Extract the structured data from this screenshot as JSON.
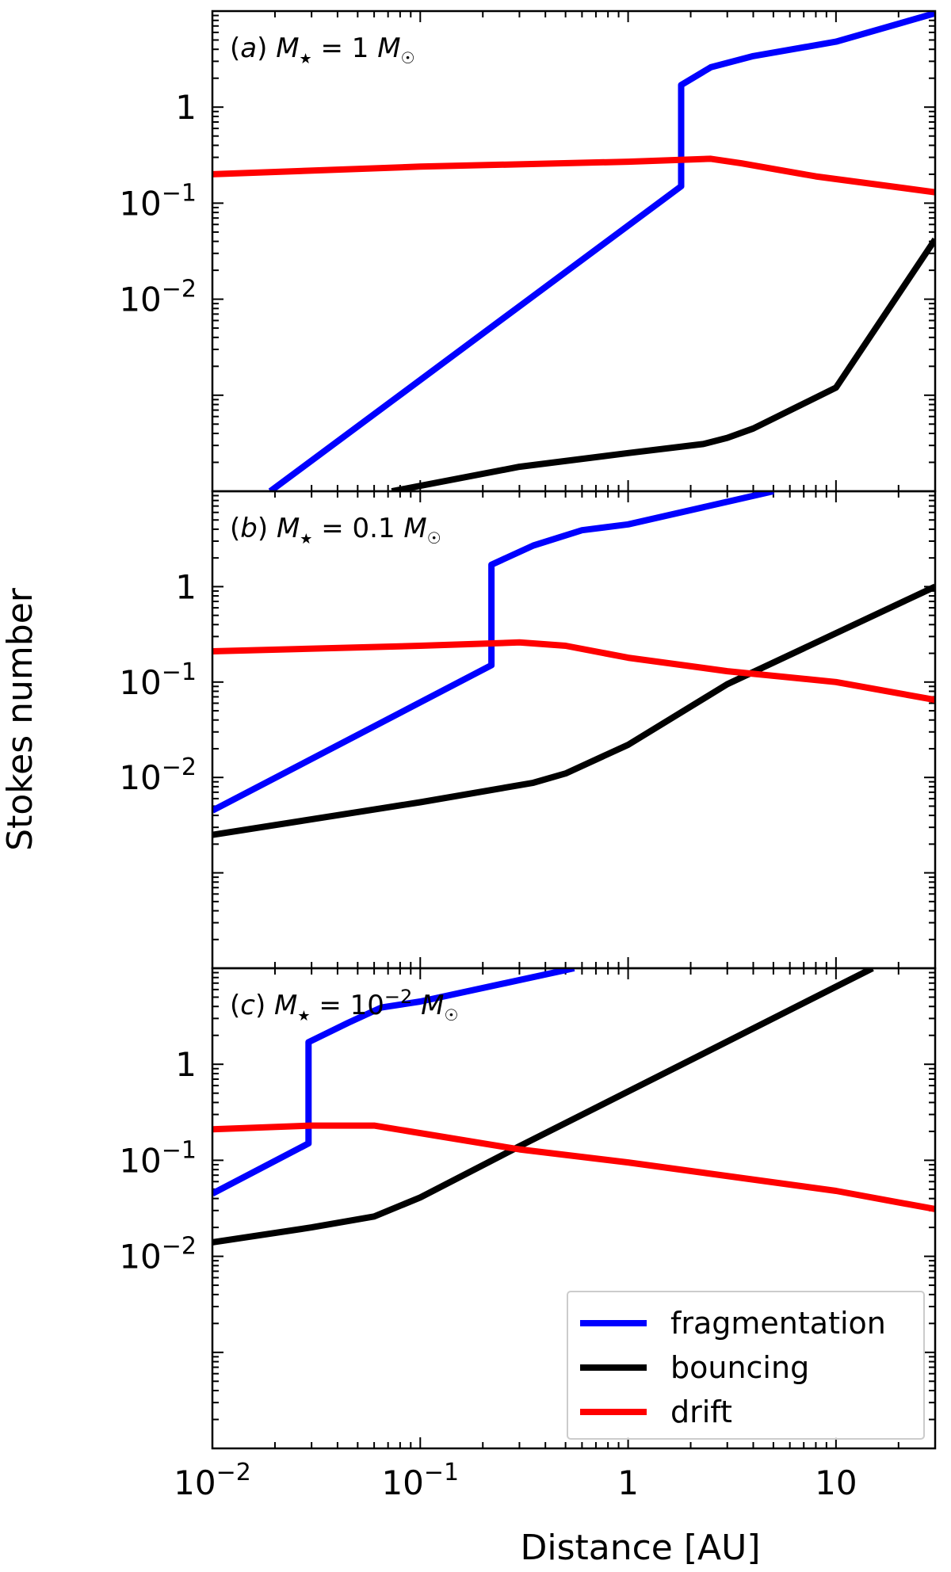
{
  "chart_data": {
    "type": "line",
    "xlabel": "Distance [AU]",
    "ylabel": "Stokes number",
    "xscale": "log",
    "yscale": "log",
    "xlim": [
      0.01,
      30
    ],
    "ylim": [
      0.0001,
      10
    ],
    "x_tick_labels": [
      {
        "value": 0.01,
        "base": "10",
        "exp": "−2"
      },
      {
        "value": 0.1,
        "base": "10",
        "exp": "−1"
      },
      {
        "value": 1,
        "base": "1",
        "exp": ""
      },
      {
        "value": 10,
        "base": "10",
        "exp": ""
      }
    ],
    "y_tick_labels": [
      {
        "value": 1,
        "base": "1",
        "exp": ""
      },
      {
        "value": 0.1,
        "base": "10",
        "exp": "−1"
      },
      {
        "value": 0.01,
        "base": "10",
        "exp": "−2"
      }
    ],
    "legend": {
      "location": "lower-right",
      "panel": 2,
      "entries": [
        {
          "label": "fragmentation",
          "color": "#0000ff"
        },
        {
          "label": "bouncing",
          "color": "#000000"
        },
        {
          "label": "drift",
          "color": "#ff0000"
        }
      ]
    },
    "panels": [
      {
        "label_letter": "a",
        "label_value": "1",
        "label_exp": "",
        "series": [
          {
            "name": "fragmentation",
            "color": "#0000ff",
            "points": [
              [
                0.019,
                0.0001
              ],
              [
                1.8,
                0.15
              ],
              [
                1.8,
                1.7
              ],
              [
                2.5,
                2.6
              ],
              [
                4,
                3.4
              ],
              [
                10,
                4.8
              ],
              [
                30,
                9.5
              ]
            ]
          },
          {
            "name": "bouncing",
            "color": "#000000",
            "points": [
              [
                0.073,
                0.0001
              ],
              [
                0.3,
                0.00018
              ],
              [
                1,
                0.00025
              ],
              [
                2.3,
                0.00031
              ],
              [
                3,
                0.00036
              ],
              [
                4,
                0.00045
              ],
              [
                10,
                0.0012
              ],
              [
                30,
                0.042
              ]
            ]
          },
          {
            "name": "drift",
            "color": "#ff0000",
            "points": [
              [
                0.01,
                0.2
              ],
              [
                0.1,
                0.24
              ],
              [
                1,
                0.27
              ],
              [
                2.5,
                0.29
              ],
              [
                3.5,
                0.26
              ],
              [
                8,
                0.19
              ],
              [
                30,
                0.13
              ]
            ]
          }
        ]
      },
      {
        "label_letter": "b",
        "label_value": "0.1",
        "label_exp": "",
        "series": [
          {
            "name": "fragmentation",
            "color": "#0000ff",
            "points": [
              [
                0.01,
                0.0045
              ],
              [
                0.22,
                0.15
              ],
              [
                0.22,
                1.7
              ],
              [
                0.35,
                2.7
              ],
              [
                0.6,
                3.9
              ],
              [
                1,
                4.5
              ],
              [
                5,
                10
              ]
            ]
          },
          {
            "name": "bouncing",
            "color": "#000000",
            "points": [
              [
                0.01,
                0.0025
              ],
              [
                0.1,
                0.0055
              ],
              [
                0.35,
                0.0088
              ],
              [
                0.5,
                0.011
              ],
              [
                1,
                0.022
              ],
              [
                3,
                0.095
              ],
              [
                30,
                1
              ]
            ]
          },
          {
            "name": "drift",
            "color": "#ff0000",
            "points": [
              [
                0.01,
                0.21
              ],
              [
                0.1,
                0.24
              ],
              [
                0.3,
                0.26
              ],
              [
                0.5,
                0.24
              ],
              [
                1,
                0.18
              ],
              [
                3,
                0.13
              ],
              [
                10,
                0.1
              ],
              [
                30,
                0.065
              ]
            ]
          }
        ]
      },
      {
        "label_letter": "c",
        "label_value": "10",
        "label_exp": "−2",
        "series": [
          {
            "name": "fragmentation",
            "color": "#0000ff",
            "points": [
              [
                0.01,
                0.045
              ],
              [
                0.029,
                0.15
              ],
              [
                0.029,
                1.7
              ],
              [
                0.045,
                2.7
              ],
              [
                0.065,
                3.9
              ],
              [
                0.1,
                4.5
              ],
              [
                0.55,
                10
              ]
            ]
          },
          {
            "name": "bouncing",
            "color": "#000000",
            "points": [
              [
                0.01,
                0.014
              ],
              [
                0.03,
                0.02
              ],
              [
                0.06,
                0.026
              ],
              [
                0.1,
                0.041
              ],
              [
                0.3,
                0.14
              ],
              [
                1,
                0.52
              ],
              [
                15,
                10
              ]
            ]
          },
          {
            "name": "drift",
            "color": "#ff0000",
            "points": [
              [
                0.01,
                0.21
              ],
              [
                0.03,
                0.23
              ],
              [
                0.06,
                0.23
              ],
              [
                0.12,
                0.18
              ],
              [
                0.3,
                0.13
              ],
              [
                1,
                0.095
              ],
              [
                10,
                0.048
              ],
              [
                30,
                0.031
              ]
            ]
          }
        ]
      }
    ]
  }
}
